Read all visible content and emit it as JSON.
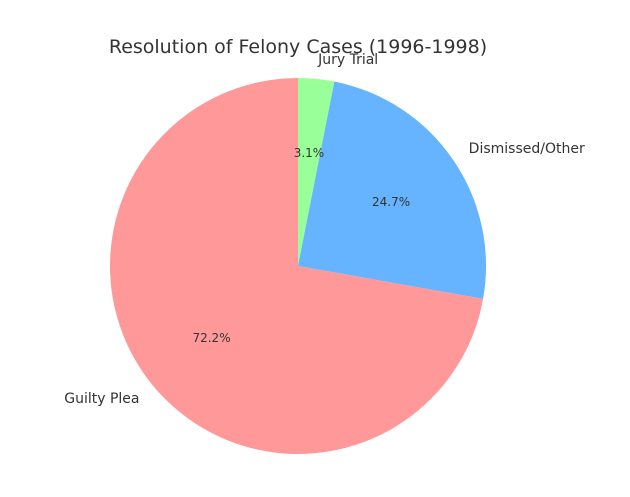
{
  "chart_data": {
    "type": "pie",
    "title": "Resolution of Felony Cases (1996-1998)",
    "slices": [
      {
        "label": "Jury Trial",
        "value": 3.1,
        "pct_label": "3.1%",
        "color": "#99ff99"
      },
      {
        "label": "Dismissed/Other",
        "value": 24.7,
        "pct_label": "24.7%",
        "color": "#66b3ff"
      },
      {
        "label": "Guilty Plea",
        "value": 72.2,
        "pct_label": "72.2%",
        "color": "#ff9999"
      }
    ],
    "start_angle": "top",
    "direction": "clockwise",
    "legend": "none"
  }
}
